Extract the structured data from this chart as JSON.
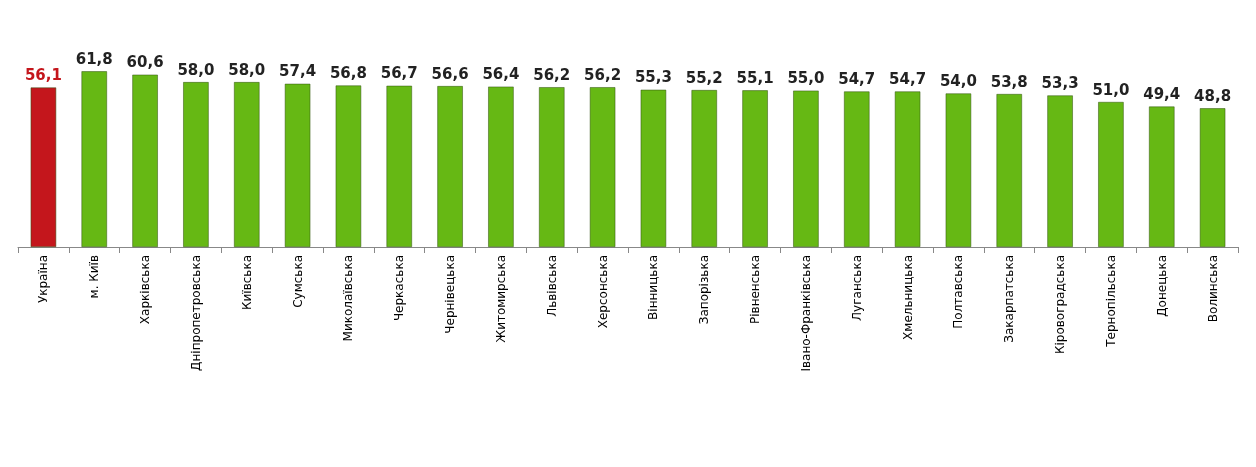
{
  "chart_data": {
    "type": "bar",
    "categories": [
      "Україна",
      "м. Київ",
      "Харківська",
      "Дніпропетровська",
      "Київська",
      "Сумська",
      "Миколаївська",
      "Черкаська",
      "Чернівецька",
      "Житомирська",
      "Львівська",
      "Херсонська",
      "Вінницька",
      "Запорізька",
      "Рівненська",
      "Івано-Франківська",
      "Луганська",
      "Хмельницька",
      "Полтавська",
      "Закарпатська",
      "Кіровоградська",
      "Тернопільська",
      "Донецька",
      "Волинська"
    ],
    "values": [
      56.1,
      61.8,
      60.6,
      58.0,
      58.0,
      57.4,
      56.8,
      56.7,
      56.6,
      56.4,
      56.2,
      56.2,
      55.3,
      55.2,
      55.1,
      55.0,
      54.7,
      54.7,
      54.0,
      53.8,
      53.3,
      51.0,
      49.4,
      48.8
    ],
    "value_labels": [
      "56,1",
      "61,8",
      "60,6",
      "58,0",
      "58,0",
      "57,4",
      "56,8",
      "56,7",
      "56,6",
      "56,4",
      "56,2",
      "56,2",
      "55,3",
      "55,2",
      "55,1",
      "55,0",
      "54,7",
      "54,7",
      "54,0",
      "53,8",
      "53,3",
      "51,0",
      "49,4",
      "48,8"
    ],
    "colors": [
      "#c4161c",
      "#66b814",
      "#66b814",
      "#66b814",
      "#66b814",
      "#66b814",
      "#66b814",
      "#66b814",
      "#66b814",
      "#66b814",
      "#66b814",
      "#66b814",
      "#66b814",
      "#66b814",
      "#66b814",
      "#66b814",
      "#66b814",
      "#66b814",
      "#66b814",
      "#66b814",
      "#66b814",
      "#66b814",
      "#66b814",
      "#66b814"
    ]
  }
}
